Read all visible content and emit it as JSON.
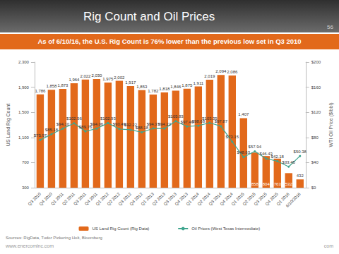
{
  "page": {
    "number": "56",
    "sources": "Sources: RigData, Tudor Pickering Holt, Bloomberg",
    "url": "www.enercominc.com",
    "footer_right": "com"
  },
  "chart_data": {
    "type": "bar",
    "title": "Rig Count and Oil Prices",
    "subtitle": "As of 6/10/16, the U.S. Rig Count is 76% lower than the previous low set in Q3 2010",
    "categories": [
      "Q3 2010",
      "Q4 2010",
      "Q1 2011",
      "Q2 2011",
      "Q3 2011",
      "Q4 2011",
      "Q1 2012",
      "Q2 2012",
      "Q3 2012",
      "Q4 2012",
      "Q1 2013",
      "Q2 2013",
      "Q3 2013",
      "Q4 2013",
      "Q1 2014",
      "Q2 2014",
      "Q3 2014",
      "Q4 2014",
      "Q1 2015",
      "Q2 2015",
      "Q3 2015",
      "Q4 2015",
      "Q1 2016",
      "6/10/2016"
    ],
    "series": [
      {
        "name": "US Land Rig Count (Rig Data)",
        "type": "bar",
        "color": "#e2691b",
        "values": [
          1786,
          1858,
          1873,
          1964,
          2022,
          2030,
          1975,
          2002,
          1917,
          1853,
          1782,
          1818,
          1846,
          1875,
          1911,
          2019,
          2094,
          2086,
          1407,
          858,
          804,
          763,
          532,
          432
        ],
        "value_labels": [
          "1,786",
          "1,858",
          "1,873",
          "1,964",
          "2,022",
          "2,030",
          "1,975",
          "2,002",
          "1,917",
          "1,853",
          "1,782",
          "1,818",
          "1,846",
          "1,875",
          "1,911",
          "2,019",
          "2,094",
          "2,086",
          "1,407",
          "858",
          "804",
          "763",
          "532",
          "432"
        ]
      },
      {
        "name": "Oil Prices (West Texas Intermediate)",
        "type": "line",
        "axis": "y2",
        "color": "#3fa58e",
        "marker": "circle",
        "line_style": "solid",
        "values": [
          75.97,
          85.18,
          94.1,
          102.56,
          89.76,
          94.06,
          102.93,
          93.49,
          92.22,
          88.18,
          94.37,
          94.22,
          105.83,
          97.46,
          98.68,
          103.35,
          97.87,
          73.15,
          48.63,
          57.94,
          46.43,
          42.18,
          33.45,
          50.38
        ],
        "value_labels": [
          "$75.97",
          "$85.18",
          "$94.10",
          "$102.56",
          "$89.76",
          "$94.06",
          "$102.93",
          "$93.49",
          "$92.22",
          "$88.18",
          "$94.37",
          "$94.22",
          "$105.83",
          "$97.46",
          "$98.68",
          "$103.35",
          "$97.87",
          "$73.15",
          "$48.63",
          "$57.94",
          "$46.43",
          "$42.18",
          "$33.45",
          "$50.38"
        ]
      }
    ],
    "y_label": "US Land Rig Count",
    "y2_label": "WTI Oil Price ($/bbl)",
    "ylim": [
      300,
      2300
    ],
    "yticks": [
      300,
      700,
      {
        "value": 1100,
        "label": "1,100"
      },
      {
        "value": 1500,
        "label": "1,500"
      },
      {
        "value": 1900,
        "label": "1,900"
      },
      {
        "value": 2300,
        "label": "2,300"
      }
    ],
    "y2lim": [
      0,
      200
    ],
    "y2ticks": [
      {
        "value": 0,
        "label": "$0"
      },
      {
        "value": 40,
        "label": "$40"
      },
      {
        "value": 80,
        "label": "$80"
      },
      {
        "value": 120,
        "label": "$120"
      },
      {
        "value": 160,
        "label": "$160"
      },
      {
        "value": 200,
        "label": "$200"
      }
    ],
    "grid": false,
    "legend": "bottom",
    "data_labels": true
  }
}
